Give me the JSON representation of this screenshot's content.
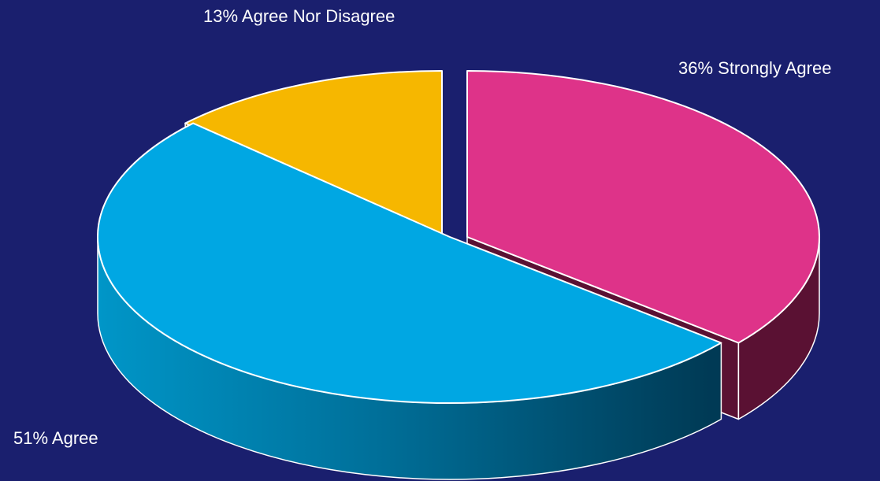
{
  "chart_data": {
    "type": "pie",
    "style": "3d-exploded",
    "slices": [
      {
        "label": "Strongly Agree",
        "value": 36,
        "color": "#de3389",
        "side_color": "#5a1133"
      },
      {
        "label": "Agree",
        "value": 51,
        "color": "#00a7e3",
        "side_color_light": "#0096c8",
        "side_color_dark": "#003a55"
      },
      {
        "label": "Agree Nor Disagree",
        "value": 13,
        "color": "#f6b700",
        "side_color": "#6a4d00"
      }
    ],
    "data_labels": [
      "13% Agree Nor Disagree",
      "36% Strongly Agree",
      "51% Agree"
    ],
    "background": "#1a1f6e",
    "legend": "none"
  }
}
